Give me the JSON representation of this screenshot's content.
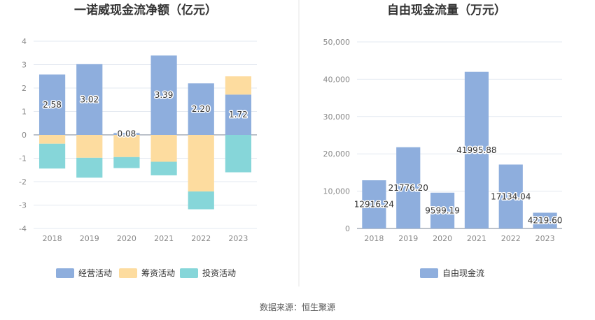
{
  "source_label": "数据来源：恒生聚源",
  "colors": {
    "operating": "#8eaedd",
    "financing": "#fddc9f",
    "investing": "#86d6d9",
    "fcf": "#8eaedd",
    "grid": "#e3e8f0",
    "zero_line": "#7a8594",
    "divider": "#e6e6e6"
  },
  "chart_data": [
    {
      "type": "bar",
      "stacked": true,
      "title": "一诺威现金流净额（亿元）",
      "categories": [
        "2018",
        "2019",
        "2020",
        "2021",
        "2022",
        "2023"
      ],
      "ylim": [
        -4,
        4
      ],
      "yticks": [
        -4,
        -3,
        -2,
        -1,
        0,
        1,
        2,
        3,
        4
      ],
      "grid": true,
      "legend_position": "bottom",
      "series": [
        {
          "name": "经营活动",
          "color_key": "operating",
          "values": [
            2.58,
            3.02,
            0.08,
            3.39,
            2.2,
            1.72
          ],
          "labels": [
            "2.58",
            "3.02",
            "0.08",
            "3.39",
            "2.20",
            "1.72"
          ]
        },
        {
          "name": "筹资活动",
          "color_key": "financing",
          "values": [
            -0.38,
            -0.98,
            -0.95,
            -1.15,
            -2.42,
            0.78
          ]
        },
        {
          "name": "投资活动",
          "color_key": "investing",
          "values": [
            -1.06,
            -0.85,
            -0.47,
            -0.58,
            -0.76,
            -1.6
          ]
        }
      ]
    },
    {
      "type": "bar",
      "title": "自由现金流量（万元）",
      "categories": [
        "2018",
        "2019",
        "2020",
        "2021",
        "2022",
        "2023"
      ],
      "ylim": [
        0,
        50000
      ],
      "yticks": [
        0,
        10000,
        20000,
        30000,
        40000,
        50000
      ],
      "ytick_labels": [
        "0",
        "10,000",
        "20,000",
        "30,000",
        "40,000",
        "50,000"
      ],
      "grid": true,
      "legend_position": "bottom",
      "series": [
        {
          "name": "自由现金流",
          "color_key": "fcf",
          "values": [
            12916.24,
            21776.2,
            9599.19,
            41995.88,
            17134.04,
            4219.6
          ],
          "labels": [
            "12916.24",
            "21776.20",
            "9599.19",
            "41995.88",
            "17134.04",
            "4219.60"
          ]
        }
      ]
    }
  ]
}
